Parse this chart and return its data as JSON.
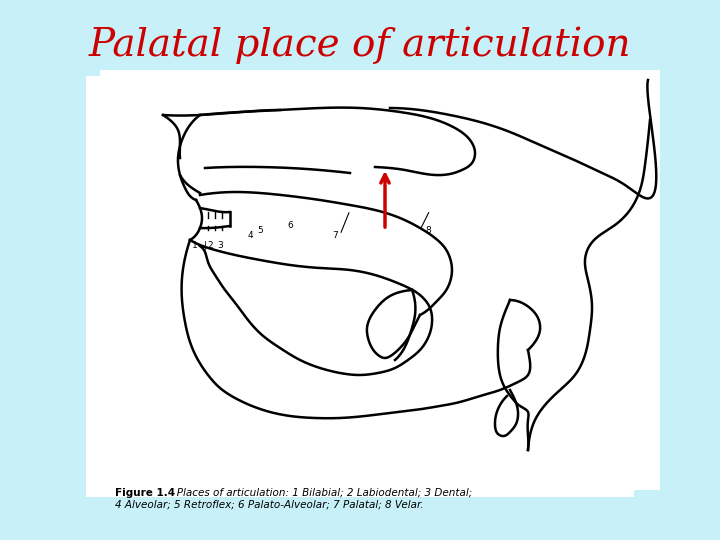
{
  "title": "Palatal place of articulation",
  "title_color": "#cc0000",
  "title_fontsize": 28,
  "background_color": "#c8f0f8",
  "image_bg": "#ffffff",
  "figure_caption_bold": "Figure 1.4",
  "figure_caption_normal": "   Places of articulation: 1 Bilabial; 2 Labiodental; 3 Dental;",
  "figure_caption_line2": "4 Alveolar; 5 Retroflex; 6 Palato-Alveolar; 7 Palatal; 8 Velar.",
  "arrow_color": "#cc0000",
  "outline_color": "#000000"
}
